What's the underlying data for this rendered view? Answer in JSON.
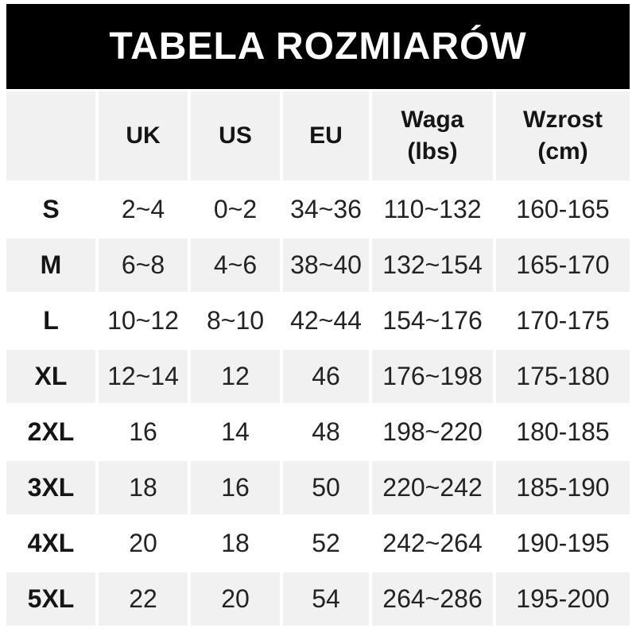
{
  "title": "TABELA ROZMIARÓW",
  "chart_data": {
    "type": "table",
    "title": "TABELA ROZMIARÓW",
    "columns": [
      "",
      "UK",
      "US",
      "EU",
      "Waga (lbs)",
      "Wzrost (cm)"
    ],
    "rows": [
      [
        "S",
        "2~4",
        "0~2",
        "34~36",
        "110~132",
        "160-165"
      ],
      [
        "M",
        "6~8",
        "4~6",
        "38~40",
        "132~154",
        "165-170"
      ],
      [
        "L",
        "10~12",
        "8~10",
        "42~44",
        "154~176",
        "170-175"
      ],
      [
        "XL",
        "12~14",
        "12",
        "46",
        "176~198",
        "175-180"
      ],
      [
        "2XL",
        "16",
        "14",
        "48",
        "198~220",
        "180-185"
      ],
      [
        "3XL",
        "18",
        "16",
        "50",
        "220~242",
        "185-190"
      ],
      [
        "4XL",
        "20",
        "18",
        "52",
        "242~264",
        "190-195"
      ],
      [
        "5XL",
        "22",
        "20",
        "54",
        "264~286",
        "195-200"
      ]
    ]
  },
  "table": {
    "header": [
      "",
      "UK",
      "US",
      "EU",
      "Waga\n(lbs)",
      "Wzrost\n(cm)"
    ],
    "rows": [
      [
        "S",
        "2~4",
        "0~2",
        "34~36",
        "110~132",
        "160-165"
      ],
      [
        "M",
        "6~8",
        "4~6",
        "38~40",
        "132~154",
        "165-170"
      ],
      [
        "L",
        "10~12",
        "8~10",
        "42~44",
        "154~176",
        "170-175"
      ],
      [
        "XL",
        "12~14",
        "12",
        "46",
        "176~198",
        "175-180"
      ],
      [
        "2XL",
        "16",
        "14",
        "48",
        "198~220",
        "180-185"
      ],
      [
        "3XL",
        "18",
        "16",
        "50",
        "220~242",
        "185-190"
      ],
      [
        "4XL",
        "20",
        "18",
        "52",
        "242~264",
        "190-195"
      ],
      [
        "5XL",
        "22",
        "20",
        "54",
        "264~286",
        "195-200"
      ]
    ]
  },
  "colors": {
    "banner_bg": "#000000",
    "banner_text": "#ffffff",
    "row_alt_bg": "#f1f1f1",
    "row_bg": "#ffffff",
    "text": "#232323"
  }
}
